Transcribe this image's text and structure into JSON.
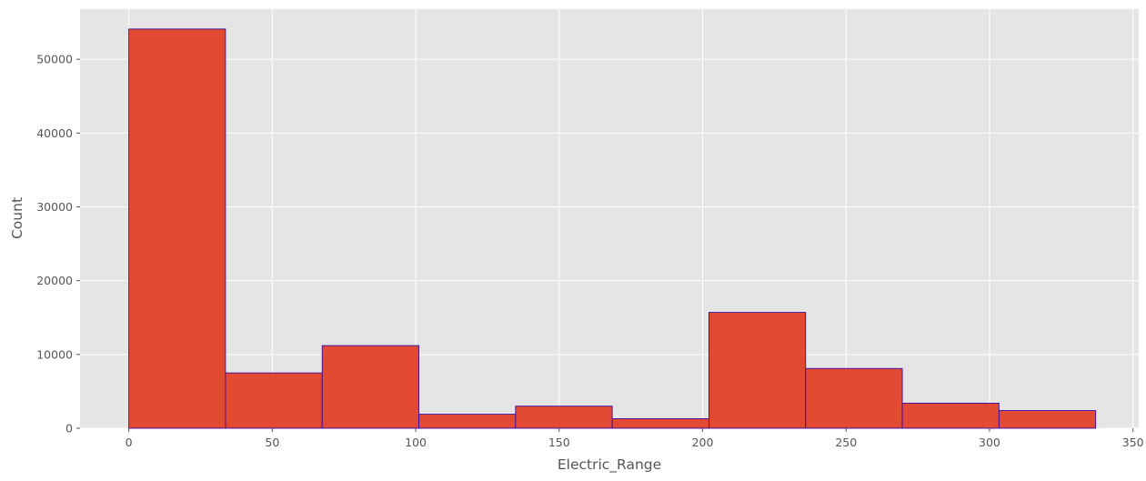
{
  "chart_data": {
    "type": "bar",
    "subtype": "histogram",
    "xlabel": "Electric_Range",
    "ylabel": "Count",
    "xlim": [
      -17,
      352
    ],
    "ylim": [
      0,
      56800
    ],
    "xticks": [
      0,
      50,
      100,
      150,
      200,
      250,
      300,
      350
    ],
    "yticks": [
      0,
      10000,
      20000,
      30000,
      40000,
      50000
    ],
    "bin_edges": [
      0,
      33.7,
      67.4,
      101.1,
      134.8,
      168.5,
      202.2,
      235.9,
      269.6,
      303.3,
      337
    ],
    "values": [
      54100,
      7500,
      11200,
      1900,
      3000,
      1300,
      15700,
      8100,
      3400,
      2400
    ],
    "grid": true,
    "style": "ggplot",
    "colors": {
      "bar_fill": "#E24A33",
      "bar_edge": "#3A0CA3",
      "plot_background": "#E5E5E5",
      "grid": "#FFFFFF"
    }
  }
}
